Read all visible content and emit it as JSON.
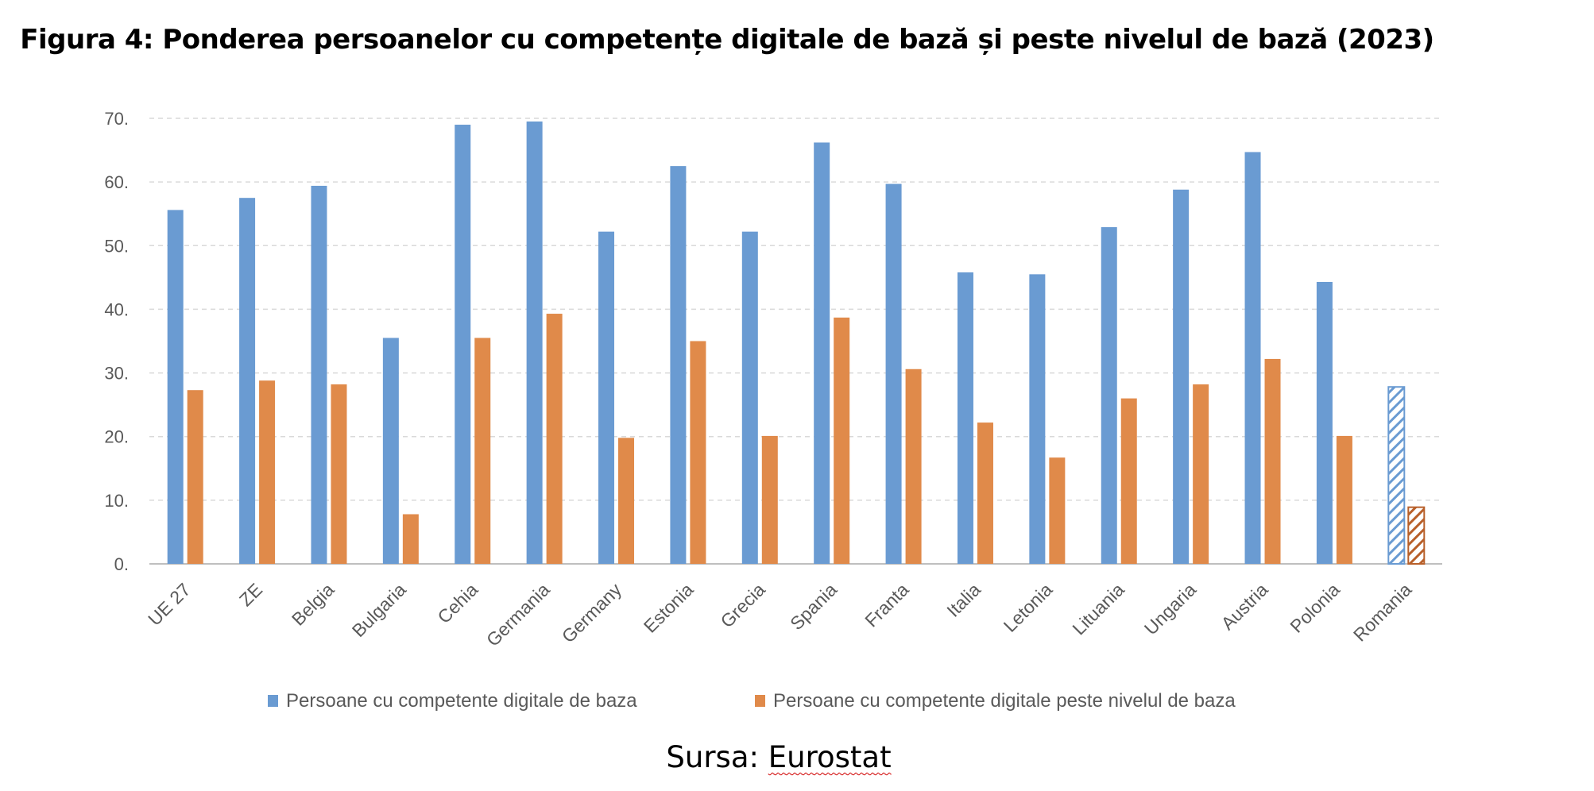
{
  "figure": {
    "title": "Figura 4: Ponderea persoanelor cu competențe digitale de bază și peste nivelul de bază (2023)",
    "source_label": "Sursa:",
    "source_name": "Eurostat"
  },
  "chart_data": {
    "type": "bar",
    "title": "Figura 4: Ponderea persoanelor cu competențe digitale de bază și peste nivelul de bază (2023)",
    "xlabel": "",
    "ylabel": "",
    "ylim": [
      0,
      70
    ],
    "yticks": [
      0,
      10,
      20,
      30,
      40,
      50,
      60,
      70
    ],
    "ytick_labels": [
      "0.",
      "10.",
      "20.",
      "30.",
      "40.",
      "50.",
      "60.",
      "70."
    ],
    "grid": true,
    "legend_position": "bottom",
    "categories": [
      "UE 27",
      "ZE",
      "Belgia",
      "Bulgaria",
      "Cehia",
      "Germania",
      "Germany",
      "Estonia",
      "Grecia",
      "Spania",
      "Franta",
      "Italia",
      "Letonia",
      "Lituania",
      "Ungaria",
      "Austria",
      "Polonia",
      "Romania"
    ],
    "highlighted_category": "Romania",
    "series": [
      {
        "name": "Persoane cu competente digitale de baza",
        "color": "#6a9bd2",
        "values": [
          55.6,
          57.5,
          59.4,
          35.5,
          69.0,
          69.5,
          52.2,
          62.5,
          52.2,
          66.2,
          59.7,
          45.8,
          45.5,
          52.9,
          58.8,
          64.7,
          44.3,
          27.8
        ]
      },
      {
        "name": "Persoane cu competente digitale peste nivelul de baza",
        "color": "#e08a4a",
        "values": [
          27.3,
          28.8,
          28.2,
          7.8,
          35.5,
          39.3,
          19.8,
          35.0,
          20.1,
          38.7,
          30.6,
          22.2,
          16.7,
          26.0,
          28.2,
          32.2,
          20.1,
          8.9
        ]
      }
    ]
  }
}
